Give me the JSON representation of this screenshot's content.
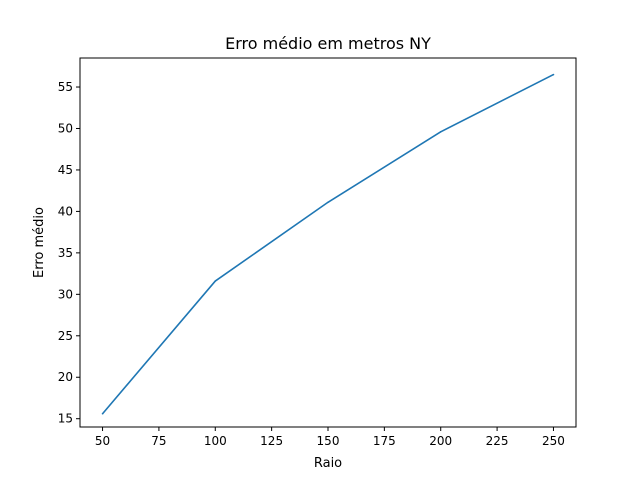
{
  "chart_data": {
    "type": "line",
    "title": "Erro médio em metros NY",
    "xlabel": "Raio",
    "ylabel": "Erro médio",
    "xlim": [
      40,
      260
    ],
    "ylim": [
      14,
      58.5
    ],
    "xticks": [
      50,
      75,
      100,
      125,
      150,
      175,
      200,
      225,
      250
    ],
    "yticks": [
      15,
      20,
      25,
      30,
      35,
      40,
      45,
      50,
      55
    ],
    "grid": false,
    "legend": "none",
    "series": [
      {
        "color": "#1f77b4",
        "x": [
          50,
          100,
          150,
          200,
          250
        ],
        "y": [
          15.6,
          31.6,
          41.1,
          49.6,
          56.5
        ]
      }
    ]
  }
}
